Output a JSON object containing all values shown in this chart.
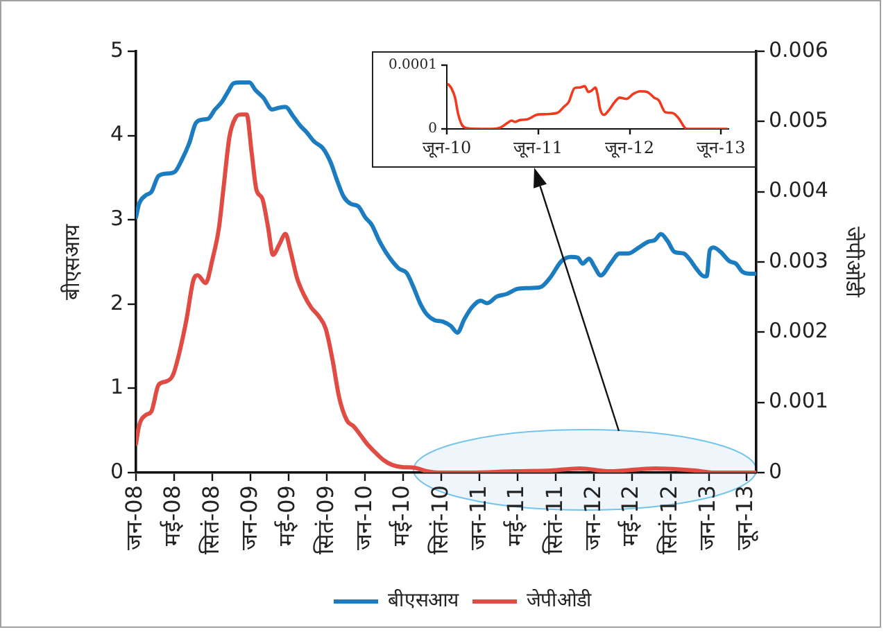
{
  "chart_data": [
    {
      "type": "line",
      "ylabel": "बीएसआय",
      "y2label": "जेपीओडी",
      "series": [
        {
          "name": "बीएसआय",
          "color": "#1b7dc0",
          "x": [
            "2008-01-01",
            "2008-01-11",
            "2008-02-01",
            "2008-02-19",
            "2008-03-13",
            "2008-04-13",
            "2008-05-04",
            "2008-05-26",
            "2008-06-19",
            "2008-07-10",
            "2008-08-01",
            "2008-08-19",
            "2008-09-07",
            "2008-10-01",
            "2008-10-22",
            "2008-11-07",
            "2008-11-28",
            "2008-12-28",
            "2009-01-16",
            "2009-02-10",
            "2009-03-10",
            "2009-04-01",
            "2009-04-22",
            "2009-05-16",
            "2009-06-07",
            "2009-06-28",
            "2009-07-22",
            "2009-08-19",
            "2009-09-13",
            "2009-10-04",
            "2009-10-25",
            "2009-11-16",
            "2009-12-10",
            "2010-01-01",
            "2010-01-22",
            "2010-02-15",
            "2010-03-07",
            "2010-03-28",
            "2010-04-19",
            "2010-05-13",
            "2010-06-04",
            "2010-06-25",
            "2010-07-16",
            "2010-08-10",
            "2010-09-07",
            "2010-10-01",
            "2010-10-22",
            "2010-11-13",
            "2010-12-07",
            "2011-01-04",
            "2011-01-25",
            "2011-02-25",
            "2011-03-28",
            "2011-05-01",
            "2011-06-01",
            "2011-07-13",
            "2011-08-13",
            "2011-09-19",
            "2011-10-19",
            "2011-11-10",
            "2011-11-25",
            "2011-12-16",
            "2012-01-01",
            "2012-01-22",
            "2012-02-22",
            "2012-03-22",
            "2012-04-19",
            "2012-05-22",
            "2012-06-22",
            "2012-07-13",
            "2012-08-01",
            "2012-08-22",
            "2012-09-13",
            "2012-10-13",
            "2012-11-01",
            "2012-11-22",
            "2012-12-16",
            "2012-12-25",
            "2013-01-04",
            "2013-01-16",
            "2013-02-07",
            "2013-03-07",
            "2013-03-28",
            "2013-04-19",
            "2013-05-13",
            "2013-05-28"
          ],
          "values": [
            3.03,
            3.19,
            3.29,
            3.33,
            3.52,
            3.55,
            3.57,
            3.71,
            3.91,
            4.15,
            4.19,
            4.2,
            4.3,
            4.4,
            4.53,
            4.62,
            4.63,
            4.63,
            4.54,
            4.45,
            4.31,
            4.33,
            4.34,
            4.23,
            4.12,
            4.04,
            3.93,
            3.85,
            3.68,
            3.46,
            3.27,
            3.19,
            3.16,
            3.03,
            2.94,
            2.75,
            2.62,
            2.51,
            2.42,
            2.37,
            2.2,
            2.01,
            1.88,
            1.81,
            1.79,
            1.74,
            1.66,
            1.82,
            1.96,
            2.04,
            2.01,
            2.09,
            2.12,
            2.18,
            2.19,
            2.2,
            2.31,
            2.51,
            2.56,
            2.55,
            2.48,
            2.54,
            2.45,
            2.34,
            2.48,
            2.6,
            2.6,
            2.67,
            2.74,
            2.76,
            2.83,
            2.75,
            2.62,
            2.6,
            2.53,
            2.42,
            2.33,
            2.33,
            2.64,
            2.67,
            2.62,
            2.51,
            2.48,
            2.38,
            2.36,
            2.36
          ]
        },
        {
          "name": "जेपीओडी",
          "color": "#e04b43",
          "axis": "y2",
          "x": [
            "2008-01-01",
            "2008-01-11",
            "2008-02-01",
            "2008-02-19",
            "2008-03-13",
            "2008-04-07",
            "2008-04-28",
            "2008-05-19",
            "2008-06-10",
            "2008-07-02",
            "2008-07-16",
            "2008-08-10",
            "2008-09-01",
            "2008-09-22",
            "2008-10-07",
            "2008-10-25",
            "2008-11-13",
            "2008-12-01",
            "2008-12-19",
            "2009-01-04",
            "2009-01-19",
            "2009-02-07",
            "2009-02-25",
            "2009-03-13",
            "2009-04-01",
            "2009-04-22",
            "2009-05-07",
            "2009-05-28",
            "2009-06-22",
            "2009-07-13",
            "2009-08-07",
            "2009-08-28",
            "2009-09-19",
            "2009-10-10",
            "2009-11-04",
            "2009-11-25",
            "2009-12-16",
            "2010-01-07",
            "2010-01-28",
            "2010-02-28",
            "2010-03-28",
            "2010-04-28",
            "2010-06-07",
            "2010-07-16",
            "2010-08-22",
            "2010-12-01",
            "2011-04-19",
            "2011-08-16",
            "2011-11-16",
            "2012-02-19",
            "2012-07-13",
            "2012-11-19",
            "2013-01-16",
            "2013-06-01"
          ],
          "values": [
            0.00041,
            0.00067,
            0.00082,
            0.00087,
            0.00125,
            0.0013,
            0.00139,
            0.00172,
            0.00218,
            0.00274,
            0.00281,
            0.0027,
            0.00304,
            0.0035,
            0.00409,
            0.00478,
            0.00505,
            0.0051,
            0.0051,
            0.00455,
            0.00403,
            0.0039,
            0.0035,
            0.0031,
            0.00324,
            0.0034,
            0.00317,
            0.00278,
            0.00251,
            0.00235,
            0.00222,
            0.00205,
            0.0016,
            0.00107,
            0.00074,
            0.00066,
            0.00054,
            0.00041,
            0.00031,
            0.00018,
            0.00011,
            8e-05,
            7e-05,
            2e-05,
            0,
            0,
            2e-05,
            3e-05,
            6e-05,
            2e-05,
            6e-05,
            3e-05,
            0,
            0
          ]
        }
      ],
      "xlim": [
        "2008-01",
        "2013-06"
      ],
      "xticks": [
        {
          "value": "2008-01",
          "label": "जन-08"
        },
        {
          "value": "2008-05",
          "label": "मई-08"
        },
        {
          "value": "2008-09",
          "label": "सितं-08"
        },
        {
          "value": "2009-01",
          "label": "जन-09"
        },
        {
          "value": "2009-05",
          "label": "मई-09"
        },
        {
          "value": "2009-09",
          "label": "सितं-09"
        },
        {
          "value": "2010-01",
          "label": "जन-10"
        },
        {
          "value": "2010-05",
          "label": "मई-10"
        },
        {
          "value": "2010-09",
          "label": "सितं-10"
        },
        {
          "value": "2011-01",
          "label": "जन-11"
        },
        {
          "value": "2011-05",
          "label": "मई-11"
        },
        {
          "value": "2011-09",
          "label": "सितं-11"
        },
        {
          "value": "2012-01",
          "label": "जन-12"
        },
        {
          "value": "2012-05",
          "label": "मई-12"
        },
        {
          "value": "2012-09",
          "label": "सितं-12"
        },
        {
          "value": "2013-01",
          "label": "जन-13"
        },
        {
          "value": "2013-05",
          "label": "जून-13"
        }
      ],
      "ylim": [
        0,
        5
      ],
      "yticks": [
        0,
        1,
        2,
        3,
        4,
        5
      ],
      "y2lim": [
        0,
        0.006
      ],
      "y2ticks": [
        0,
        0.001,
        0.002,
        0.003,
        0.004,
        0.005,
        0.006
      ],
      "grid": false,
      "legend": "bottom",
      "marker": "none",
      "line_style": "solid"
    },
    {
      "type": "line",
      "series": [
        {
          "color": "#f2391e",
          "x": [
            "2010-06-07",
            "2010-06-19",
            "2010-07-04",
            "2010-07-16",
            "2010-08-01",
            "2010-08-22",
            "2010-10-16",
            "2010-12-01",
            "2011-01-01",
            "2011-01-28",
            "2011-02-15",
            "2011-03-01",
            "2011-03-22",
            "2011-04-19",
            "2011-05-25",
            "2011-06-22",
            "2011-08-16",
            "2011-09-13",
            "2011-10-01",
            "2011-10-25",
            "2011-11-16",
            "2011-12-04",
            "2011-12-19",
            "2012-01-01",
            "2012-01-16",
            "2012-01-25",
            "2012-02-04",
            "2012-02-19",
            "2012-03-07",
            "2012-04-04",
            "2012-04-22",
            "2012-05-19",
            "2012-06-16",
            "2012-07-13",
            "2012-08-10",
            "2012-09-07",
            "2012-09-25",
            "2012-10-22",
            "2012-11-19",
            "2012-12-13",
            "2013-01-07",
            "2013-01-16",
            "2013-06-25"
          ],
          "values": [
            7e-05,
            6.4e-05,
            4.9e-05,
            2.4e-05,
            6e-06,
            1e-06,
            0,
            0,
            2e-06,
            9e-06,
            1.3e-05,
            1.1e-05,
            1.4e-05,
            1.5e-05,
            2.2e-05,
            2.3e-05,
            2.5e-05,
            3.5e-05,
            4.2e-05,
            6.4e-05,
            6.5e-05,
            6.7e-05,
            5.8e-05,
            6e-05,
            6.5e-05,
            5.3e-05,
            3.1e-05,
            2.2e-05,
            2.8e-05,
            4.3e-05,
            4.9e-05,
            4.7e-05,
            5.5e-05,
            5.9e-05,
            5.8e-05,
            4.9e-05,
            4.5e-05,
            2.6e-05,
            2.5e-05,
            1.7e-05,
            2e-06,
            0,
            0
          ]
        }
      ],
      "xlim": [
        "2010-06",
        "2013-07"
      ],
      "xticks": [
        {
          "value": "2010-06",
          "label": "जून-10"
        },
        {
          "value": "2011-06",
          "label": "जून-11"
        },
        {
          "value": "2012-06",
          "label": "जून-12"
        },
        {
          "value": "2013-06",
          "label": "जून-13"
        }
      ],
      "ylim": [
        0,
        0.0001
      ],
      "yticks": [
        0,
        0.0001
      ],
      "grid": false,
      "marker": "none",
      "line_style": "solid"
    }
  ]
}
